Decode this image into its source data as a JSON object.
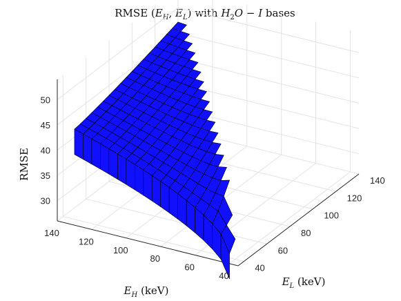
{
  "chart_data": {
    "type": "surface",
    "title": "RMSE (E_H, E_L) with H_2O − I bases",
    "title_parts": {
      "t1": "RMSE (",
      "eh": "E",
      "eh_sub": "H",
      "comma": ", ",
      "el": "E",
      "el_sub": "L",
      "t2": ") with ",
      "h": "H",
      "h_sub": "2",
      "o": "O",
      "minus": " − ",
      "i": "I",
      "t3": " bases"
    },
    "xlabel": "E_H (keV)",
    "xlabel_parts": {
      "sym": "E",
      "sub": "H",
      "unit": " (keV)"
    },
    "ylabel": "E_L (keV)",
    "ylabel_parts": {
      "sym": "E",
      "sub": "L",
      "unit": " (keV)"
    },
    "zlabel": "RMSE",
    "x_ticks": [
      "140",
      "120",
      "100",
      "80",
      "60",
      "40"
    ],
    "y_ticks": [
      "40",
      "60",
      "80",
      "100",
      "120",
      "140"
    ],
    "z_ticks": [
      "50",
      "45",
      "40",
      "35",
      "30"
    ],
    "xlim": [
      35,
      140
    ],
    "ylim": [
      35,
      140
    ],
    "zlim": [
      26,
      54
    ],
    "surface_color": "#1010ff",
    "edge_color": "#000000",
    "grid": true,
    "description_of_values": "Surface defined for E_L < E_H. RMSE ≈ 45 at E_H = 130 keV, E_L ≈ 35 keV, rising to ≈ 53 near the diagonal E_L ≈ E_H; falls to ≈ 28 at E_H ≈ 40 keV, E_L ≈ 35 keV.",
    "anchor_values": [
      {
        "E_H": 130,
        "E_L": 35,
        "RMSE": 45
      },
      {
        "E_H": 130,
        "E_L": 125,
        "RMSE": 51
      },
      {
        "E_H": 90,
        "E_L": 35,
        "RMSE": 40
      },
      {
        "E_H": 60,
        "E_L": 35,
        "RMSE": 35
      },
      {
        "E_H": 40,
        "E_L": 35,
        "RMSE": 28
      },
      {
        "E_H": 100,
        "E_L": 95,
        "RMSE": 53
      }
    ]
  }
}
